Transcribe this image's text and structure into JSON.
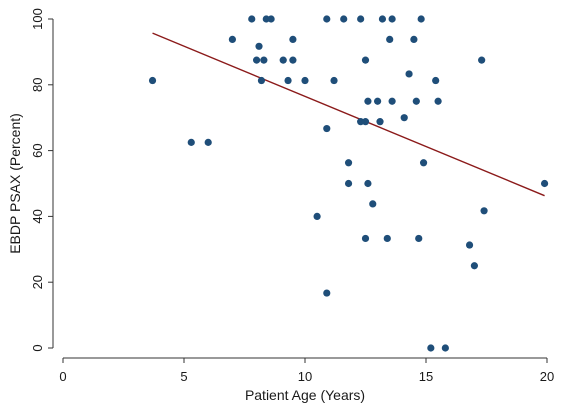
{
  "chart_data": {
    "type": "scatter",
    "xlabel": "Patient Age (Years)",
    "ylabel": "EBDP PSAX (Percent)",
    "xlim": [
      0,
      20
    ],
    "ylim": [
      0,
      100
    ],
    "x_ticks": [
      0,
      5,
      10,
      15,
      20
    ],
    "y_ticks": [
      0,
      20,
      40,
      60,
      80,
      100
    ],
    "x_tick_labels": [
      "0",
      "5",
      "10",
      "15",
      "20"
    ],
    "y_tick_labels": [
      "0",
      "20",
      "40",
      "60",
      "80",
      "100"
    ],
    "grid": false,
    "legend": "none",
    "colors": {
      "points": "#1f4e79",
      "fit_line": "#8b1a1a",
      "axis": "#333333"
    },
    "points": [
      {
        "x": 3.7,
        "y": 81.3
      },
      {
        "x": 5.3,
        "y": 62.5
      },
      {
        "x": 6.0,
        "y": 62.5
      },
      {
        "x": 7.0,
        "y": 93.8
      },
      {
        "x": 7.8,
        "y": 100
      },
      {
        "x": 8.0,
        "y": 87.5
      },
      {
        "x": 8.1,
        "y": 91.7
      },
      {
        "x": 8.2,
        "y": 81.3
      },
      {
        "x": 8.3,
        "y": 87.5
      },
      {
        "x": 8.4,
        "y": 100
      },
      {
        "x": 8.6,
        "y": 100
      },
      {
        "x": 9.1,
        "y": 87.5
      },
      {
        "x": 9.3,
        "y": 81.3
      },
      {
        "x": 9.5,
        "y": 93.8
      },
      {
        "x": 9.5,
        "y": 87.5
      },
      {
        "x": 10.0,
        "y": 81.3
      },
      {
        "x": 10.5,
        "y": 40
      },
      {
        "x": 10.9,
        "y": 100
      },
      {
        "x": 10.9,
        "y": 66.7
      },
      {
        "x": 10.9,
        "y": 16.7
      },
      {
        "x": 11.2,
        "y": 81.3
      },
      {
        "x": 11.6,
        "y": 100
      },
      {
        "x": 11.8,
        "y": 56.3
      },
      {
        "x": 11.8,
        "y": 50
      },
      {
        "x": 12.3,
        "y": 100
      },
      {
        "x": 12.3,
        "y": 68.8
      },
      {
        "x": 12.5,
        "y": 87.5
      },
      {
        "x": 12.5,
        "y": 68.8
      },
      {
        "x": 12.5,
        "y": 33.3
      },
      {
        "x": 12.6,
        "y": 75
      },
      {
        "x": 12.6,
        "y": 50
      },
      {
        "x": 12.8,
        "y": 43.8
      },
      {
        "x": 13.0,
        "y": 75
      },
      {
        "x": 13.1,
        "y": 68.8
      },
      {
        "x": 13.2,
        "y": 100
      },
      {
        "x": 13.4,
        "y": 33.3
      },
      {
        "x": 13.5,
        "y": 93.8
      },
      {
        "x": 13.6,
        "y": 100
      },
      {
        "x": 13.6,
        "y": 75
      },
      {
        "x": 14.1,
        "y": 70
      },
      {
        "x": 14.3,
        "y": 83.3
      },
      {
        "x": 14.5,
        "y": 93.8
      },
      {
        "x": 14.6,
        "y": 75
      },
      {
        "x": 14.7,
        "y": 33.3
      },
      {
        "x": 14.8,
        "y": 100
      },
      {
        "x": 14.9,
        "y": 56.3
      },
      {
        "x": 15.2,
        "y": 0
      },
      {
        "x": 15.4,
        "y": 81.3
      },
      {
        "x": 15.5,
        "y": 75
      },
      {
        "x": 15.8,
        "y": 0
      },
      {
        "x": 16.8,
        "y": 31.3
      },
      {
        "x": 17.0,
        "y": 25
      },
      {
        "x": 17.3,
        "y": 87.5
      },
      {
        "x": 17.4,
        "y": 41.7
      },
      {
        "x": 19.9,
        "y": 50
      }
    ],
    "fit_line": {
      "x": [
        3.7,
        19.9
      ],
      "y": [
        95.7,
        46.3
      ]
    }
  }
}
